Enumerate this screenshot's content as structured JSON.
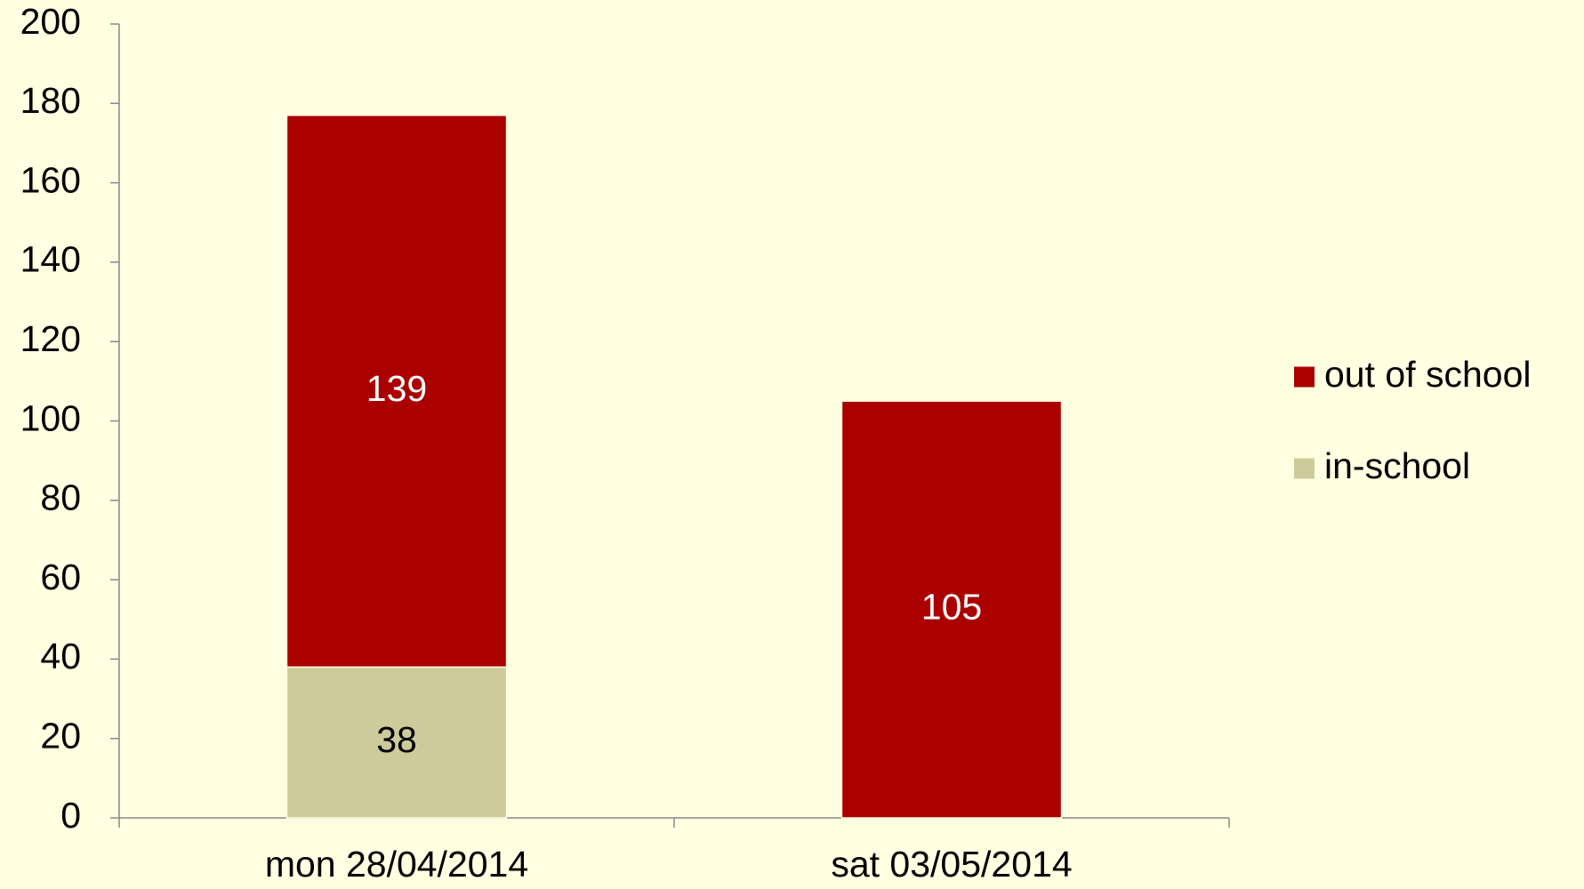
{
  "chart_data": {
    "type": "stacked_bar",
    "categories": [
      "mon 28/04/2014",
      "sat 03/05/2014"
    ],
    "series": [
      {
        "name": "in-school",
        "color": "#cdcb9a",
        "values": [
          38,
          null
        ]
      },
      {
        "name": "out of school",
        "color": "#aa0000",
        "values": [
          139,
          105
        ]
      }
    ],
    "ylim": [
      0,
      200
    ],
    "yticks": [
      0,
      20,
      40,
      60,
      80,
      100,
      120,
      140,
      160,
      180,
      200
    ],
    "legend": "right"
  }
}
